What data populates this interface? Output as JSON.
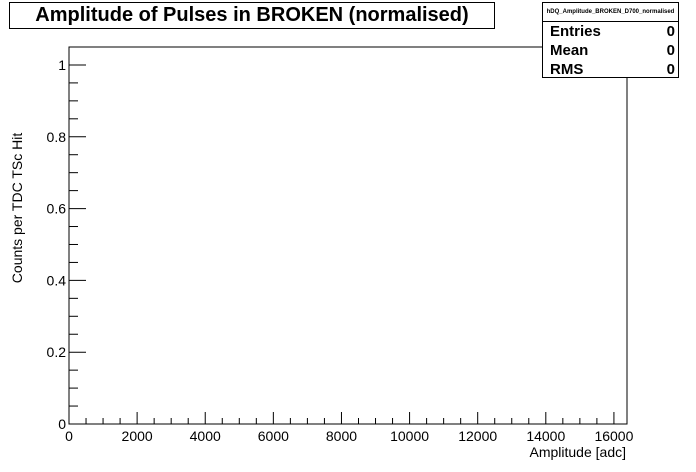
{
  "chart_data": {
    "type": "bar",
    "title": "Amplitude of Pulses in BROKEN (normalised)",
    "histogram_name": "hDQ_Amplitude_BROKEN_D700_normalised",
    "xlabel": "Amplitude [adc]",
    "ylabel": "Counts per TDC TSc Hit",
    "xlim": [
      0,
      16384
    ],
    "ylim": [
      0,
      1.05
    ],
    "x_ticks": [
      0,
      2000,
      4000,
      6000,
      8000,
      10000,
      12000,
      14000,
      16000
    ],
    "x_tick_labels": [
      "0",
      "2000",
      "4000",
      "6000",
      "8000",
      "10000",
      "12000",
      "14000",
      "16000"
    ],
    "y_ticks": [
      0,
      0.2,
      0.4,
      0.6,
      0.8,
      1
    ],
    "y_tick_labels": [
      "0",
      "0.2",
      "0.4",
      "0.6",
      "0.8",
      "1"
    ],
    "series": [],
    "grid": false,
    "stats": [
      {
        "label": "Entries",
        "value": "0"
      },
      {
        "label": "Mean",
        "value": "0"
      },
      {
        "label": "RMS",
        "value": "0"
      }
    ]
  }
}
